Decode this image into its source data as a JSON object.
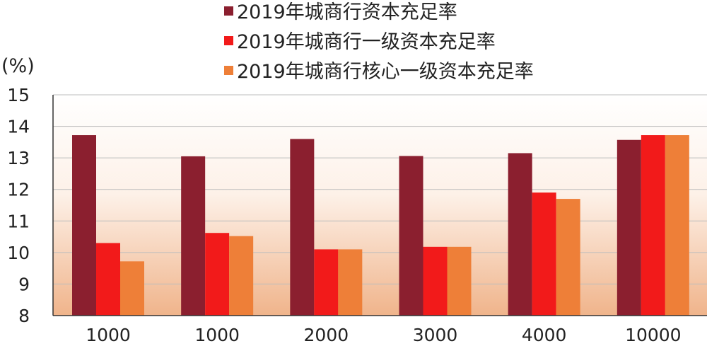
{
  "chart_data": {
    "type": "bar",
    "title": "",
    "xlabel": "",
    "ylabel": "(%)",
    "ylim": [
      8,
      15
    ],
    "yticks": [
      8,
      9,
      10,
      11,
      12,
      13,
      14,
      15
    ],
    "grid": true,
    "legend_position": "top",
    "categories": [
      "1000",
      "1000",
      "2000",
      "3000",
      "4000",
      "10000"
    ],
    "series": [
      {
        "name": "2019年城商行资本充足率",
        "color": "#8b1f2f",
        "values": [
          13.72,
          13.05,
          13.6,
          13.06,
          13.15,
          13.57
        ]
      },
      {
        "name": "2019年城商行一级资本充足率",
        "color": "#f21a1a",
        "values": [
          10.3,
          10.62,
          10.1,
          10.18,
          11.9,
          13.72
        ]
      },
      {
        "name": "2019年城商行核心一级资本充足率",
        "color": "#ee7f38",
        "values": [
          9.72,
          10.52,
          10.1,
          10.18,
          11.7,
          13.72
        ]
      }
    ],
    "background_gradient": [
      "#ffffff",
      "#f0b48b"
    ]
  }
}
